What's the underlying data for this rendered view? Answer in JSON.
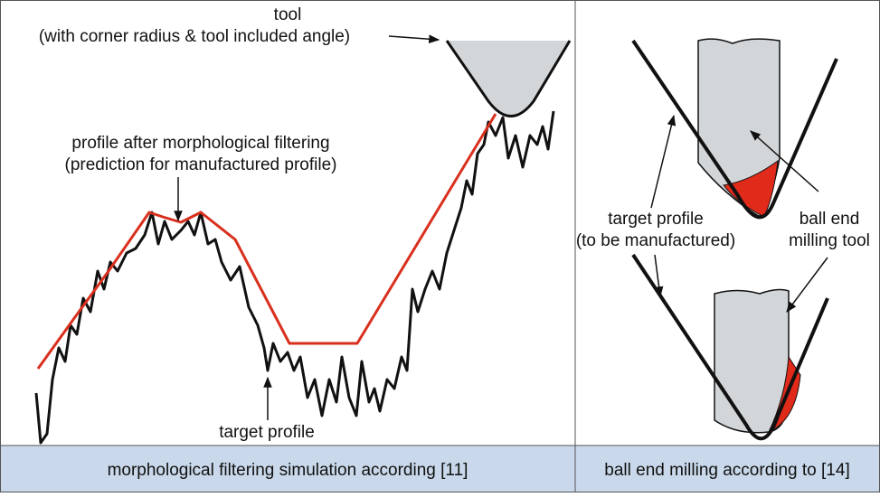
{
  "left": {
    "tool_label": "tool",
    "tool_detail": "(with corner radius & tool included angle)",
    "filtered_label": "profile after morphological filtering",
    "filtered_detail": "(prediction for manufactured profile)",
    "target_label": "target profile",
    "caption": "morphological filtering simulation according [11]"
  },
  "right": {
    "target_label": "target profile",
    "target_detail": "(to be manufactured)",
    "tool_label_1": "ball end",
    "tool_label_2": "milling tool",
    "caption": "ball end milling according to [14]"
  }
}
